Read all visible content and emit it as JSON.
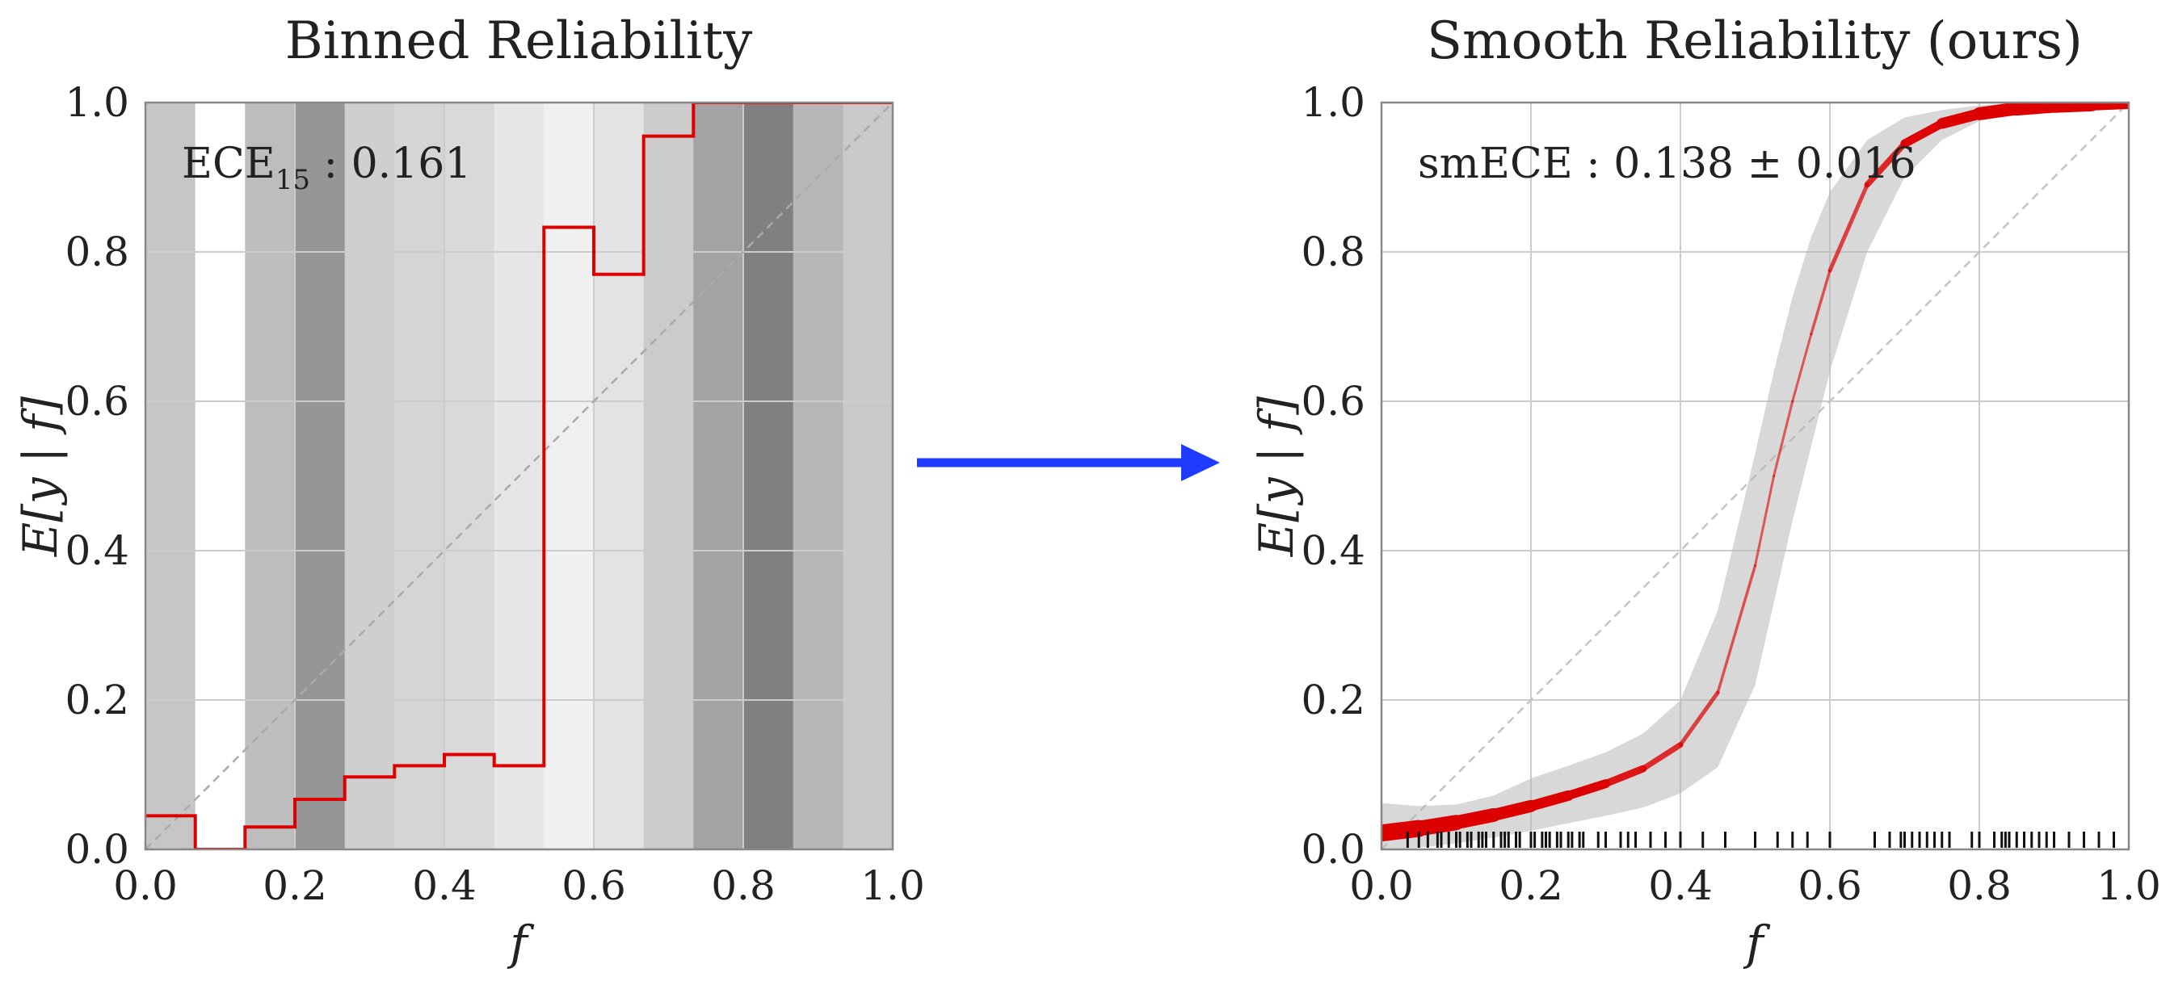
{
  "arrow_color": "#1f3bff",
  "chart_data": [
    {
      "type": "bar",
      "title": "Binned Reliability",
      "xlabel": "f",
      "ylabel": "E[y | f]",
      "xlim": [
        0,
        1
      ],
      "ylim": [
        0,
        1
      ],
      "xticks": [
        "0.0",
        "0.2",
        "0.4",
        "0.6",
        "0.8",
        "1.0"
      ],
      "yticks": [
        "0.0",
        "0.2",
        "0.4",
        "0.6",
        "0.8",
        "1.0"
      ],
      "grid": true,
      "annotation": {
        "main": "ECE",
        "sub": "15",
        "value": " : 0.161"
      },
      "bins": {
        "edges": [
          0,
          0.0667,
          0.1333,
          0.2,
          0.2667,
          0.3333,
          0.4,
          0.4667,
          0.5333,
          0.6,
          0.6667,
          0.7333,
          0.8,
          0.8667,
          0.9333,
          1.0
        ],
        "values": [
          0.045,
          0.0,
          0.03,
          0.067,
          0.097,
          0.112,
          0.127,
          0.112,
          0.833,
          0.77,
          0.955,
          1.0,
          1.0,
          1.0,
          1.0
        ],
        "shade": [
          "#c6c6c6",
          "#ffffff",
          "#bdbdbd",
          "#969696",
          "#cfcfcf",
          "#d5d5d5",
          "#d9d9d9",
          "#e6e6e6",
          "#f0f0f0",
          "#e3e3e3",
          "#cbcbcb",
          "#a3a3a3",
          "#808080",
          "#b6b6b6",
          "#c9c9c9"
        ]
      },
      "line_color": "#dd0000",
      "diagonal": true
    },
    {
      "type": "line",
      "title": "Smooth Reliability (ours)",
      "xlabel": "f",
      "ylabel": "E[y | f]",
      "xlim": [
        0,
        1
      ],
      "ylim": [
        0,
        1
      ],
      "xticks": [
        "0.0",
        "0.2",
        "0.4",
        "0.6",
        "0.8",
        "1.0"
      ],
      "yticks": [
        "0.0",
        "0.2",
        "0.4",
        "0.6",
        "0.8",
        "1.0"
      ],
      "grid": true,
      "annotation": {
        "main": "smECE : 0.138 ± 0.016"
      },
      "curve": {
        "x": [
          0.0,
          0.05,
          0.1,
          0.15,
          0.2,
          0.25,
          0.3,
          0.35,
          0.4,
          0.45,
          0.5,
          0.525,
          0.55,
          0.575,
          0.6,
          0.65,
          0.7,
          0.75,
          0.8,
          0.85,
          0.9,
          0.95,
          1.0
        ],
        "y": [
          0.022,
          0.028,
          0.036,
          0.046,
          0.058,
          0.072,
          0.088,
          0.108,
          0.14,
          0.21,
          0.38,
          0.5,
          0.6,
          0.69,
          0.775,
          0.89,
          0.945,
          0.972,
          0.985,
          0.992,
          0.996,
          0.998,
          1.0
        ],
        "band_lower": [
          0.0,
          0.002,
          0.008,
          0.016,
          0.025,
          0.035,
          0.045,
          0.056,
          0.075,
          0.11,
          0.22,
          0.33,
          0.44,
          0.54,
          0.64,
          0.8,
          0.9,
          0.95,
          0.975,
          0.985,
          0.99,
          0.994,
          0.995
        ],
        "band_upper": [
          0.062,
          0.058,
          0.06,
          0.072,
          0.095,
          0.112,
          0.13,
          0.155,
          0.2,
          0.32,
          0.53,
          0.64,
          0.74,
          0.82,
          0.88,
          0.95,
          0.98,
          0.99,
          0.996,
          1.0,
          1.0,
          1.0,
          1.0
        ],
        "width": [
          22,
          20,
          18,
          16,
          14,
          12,
          10,
          8,
          6,
          4,
          3,
          3,
          3,
          3,
          4,
          6,
          9,
          12,
          15,
          17,
          18,
          18,
          14
        ],
        "color": "#dd0000"
      },
      "rug": [
        0.035,
        0.05,
        0.062,
        0.075,
        0.08,
        0.09,
        0.1,
        0.105,
        0.115,
        0.12,
        0.13,
        0.135,
        0.14,
        0.15,
        0.16,
        0.165,
        0.17,
        0.18,
        0.185,
        0.2,
        0.205,
        0.215,
        0.22,
        0.225,
        0.235,
        0.24,
        0.25,
        0.255,
        0.265,
        0.27,
        0.29,
        0.3,
        0.32,
        0.33,
        0.34,
        0.36,
        0.38,
        0.4,
        0.43,
        0.46,
        0.5,
        0.53,
        0.55,
        0.57,
        0.6,
        0.66,
        0.68,
        0.695,
        0.7,
        0.71,
        0.72,
        0.73,
        0.74,
        0.75,
        0.76,
        0.79,
        0.8,
        0.82,
        0.83,
        0.835,
        0.84,
        0.85,
        0.86,
        0.87,
        0.88,
        0.89,
        0.9,
        0.92,
        0.94,
        0.96,
        0.98
      ],
      "diagonal": true
    }
  ]
}
